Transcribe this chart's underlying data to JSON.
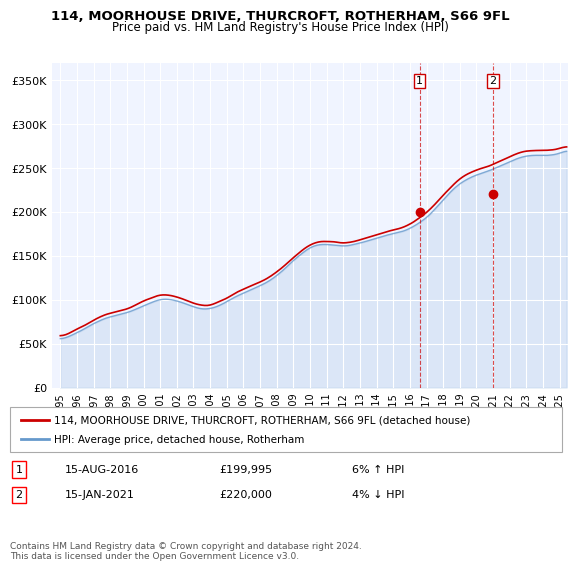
{
  "title": "114, MOORHOUSE DRIVE, THURCROFT, ROTHERHAM, S66 9FL",
  "subtitle": "Price paid vs. HM Land Registry's House Price Index (HPI)",
  "ylabel_ticks": [
    "£0",
    "£50K",
    "£100K",
    "£150K",
    "£200K",
    "£250K",
    "£300K",
    "£350K"
  ],
  "ytick_values": [
    0,
    50000,
    100000,
    150000,
    200000,
    250000,
    300000,
    350000
  ],
  "ylim": [
    0,
    370000
  ],
  "legend_line1": "114, MOORHOUSE DRIVE, THURCROFT, ROTHERHAM, S66 9FL (detached house)",
  "legend_line2": "HPI: Average price, detached house, Rotherham",
  "transaction1_date": "15-AUG-2016",
  "transaction1_price": 199995,
  "transaction1_hpi": "6% ↑ HPI",
  "transaction2_date": "15-JAN-2021",
  "transaction2_price": 220000,
  "transaction2_hpi": "4% ↓ HPI",
  "footnote": "Contains HM Land Registry data © Crown copyright and database right 2024.\nThis data is licensed under the Open Government Licence v3.0.",
  "red_color": "#cc0000",
  "blue_color": "#6699cc",
  "dashed_red": "#cc0000",
  "background_plot": "#f0f4ff",
  "background_fig": "#ffffff"
}
